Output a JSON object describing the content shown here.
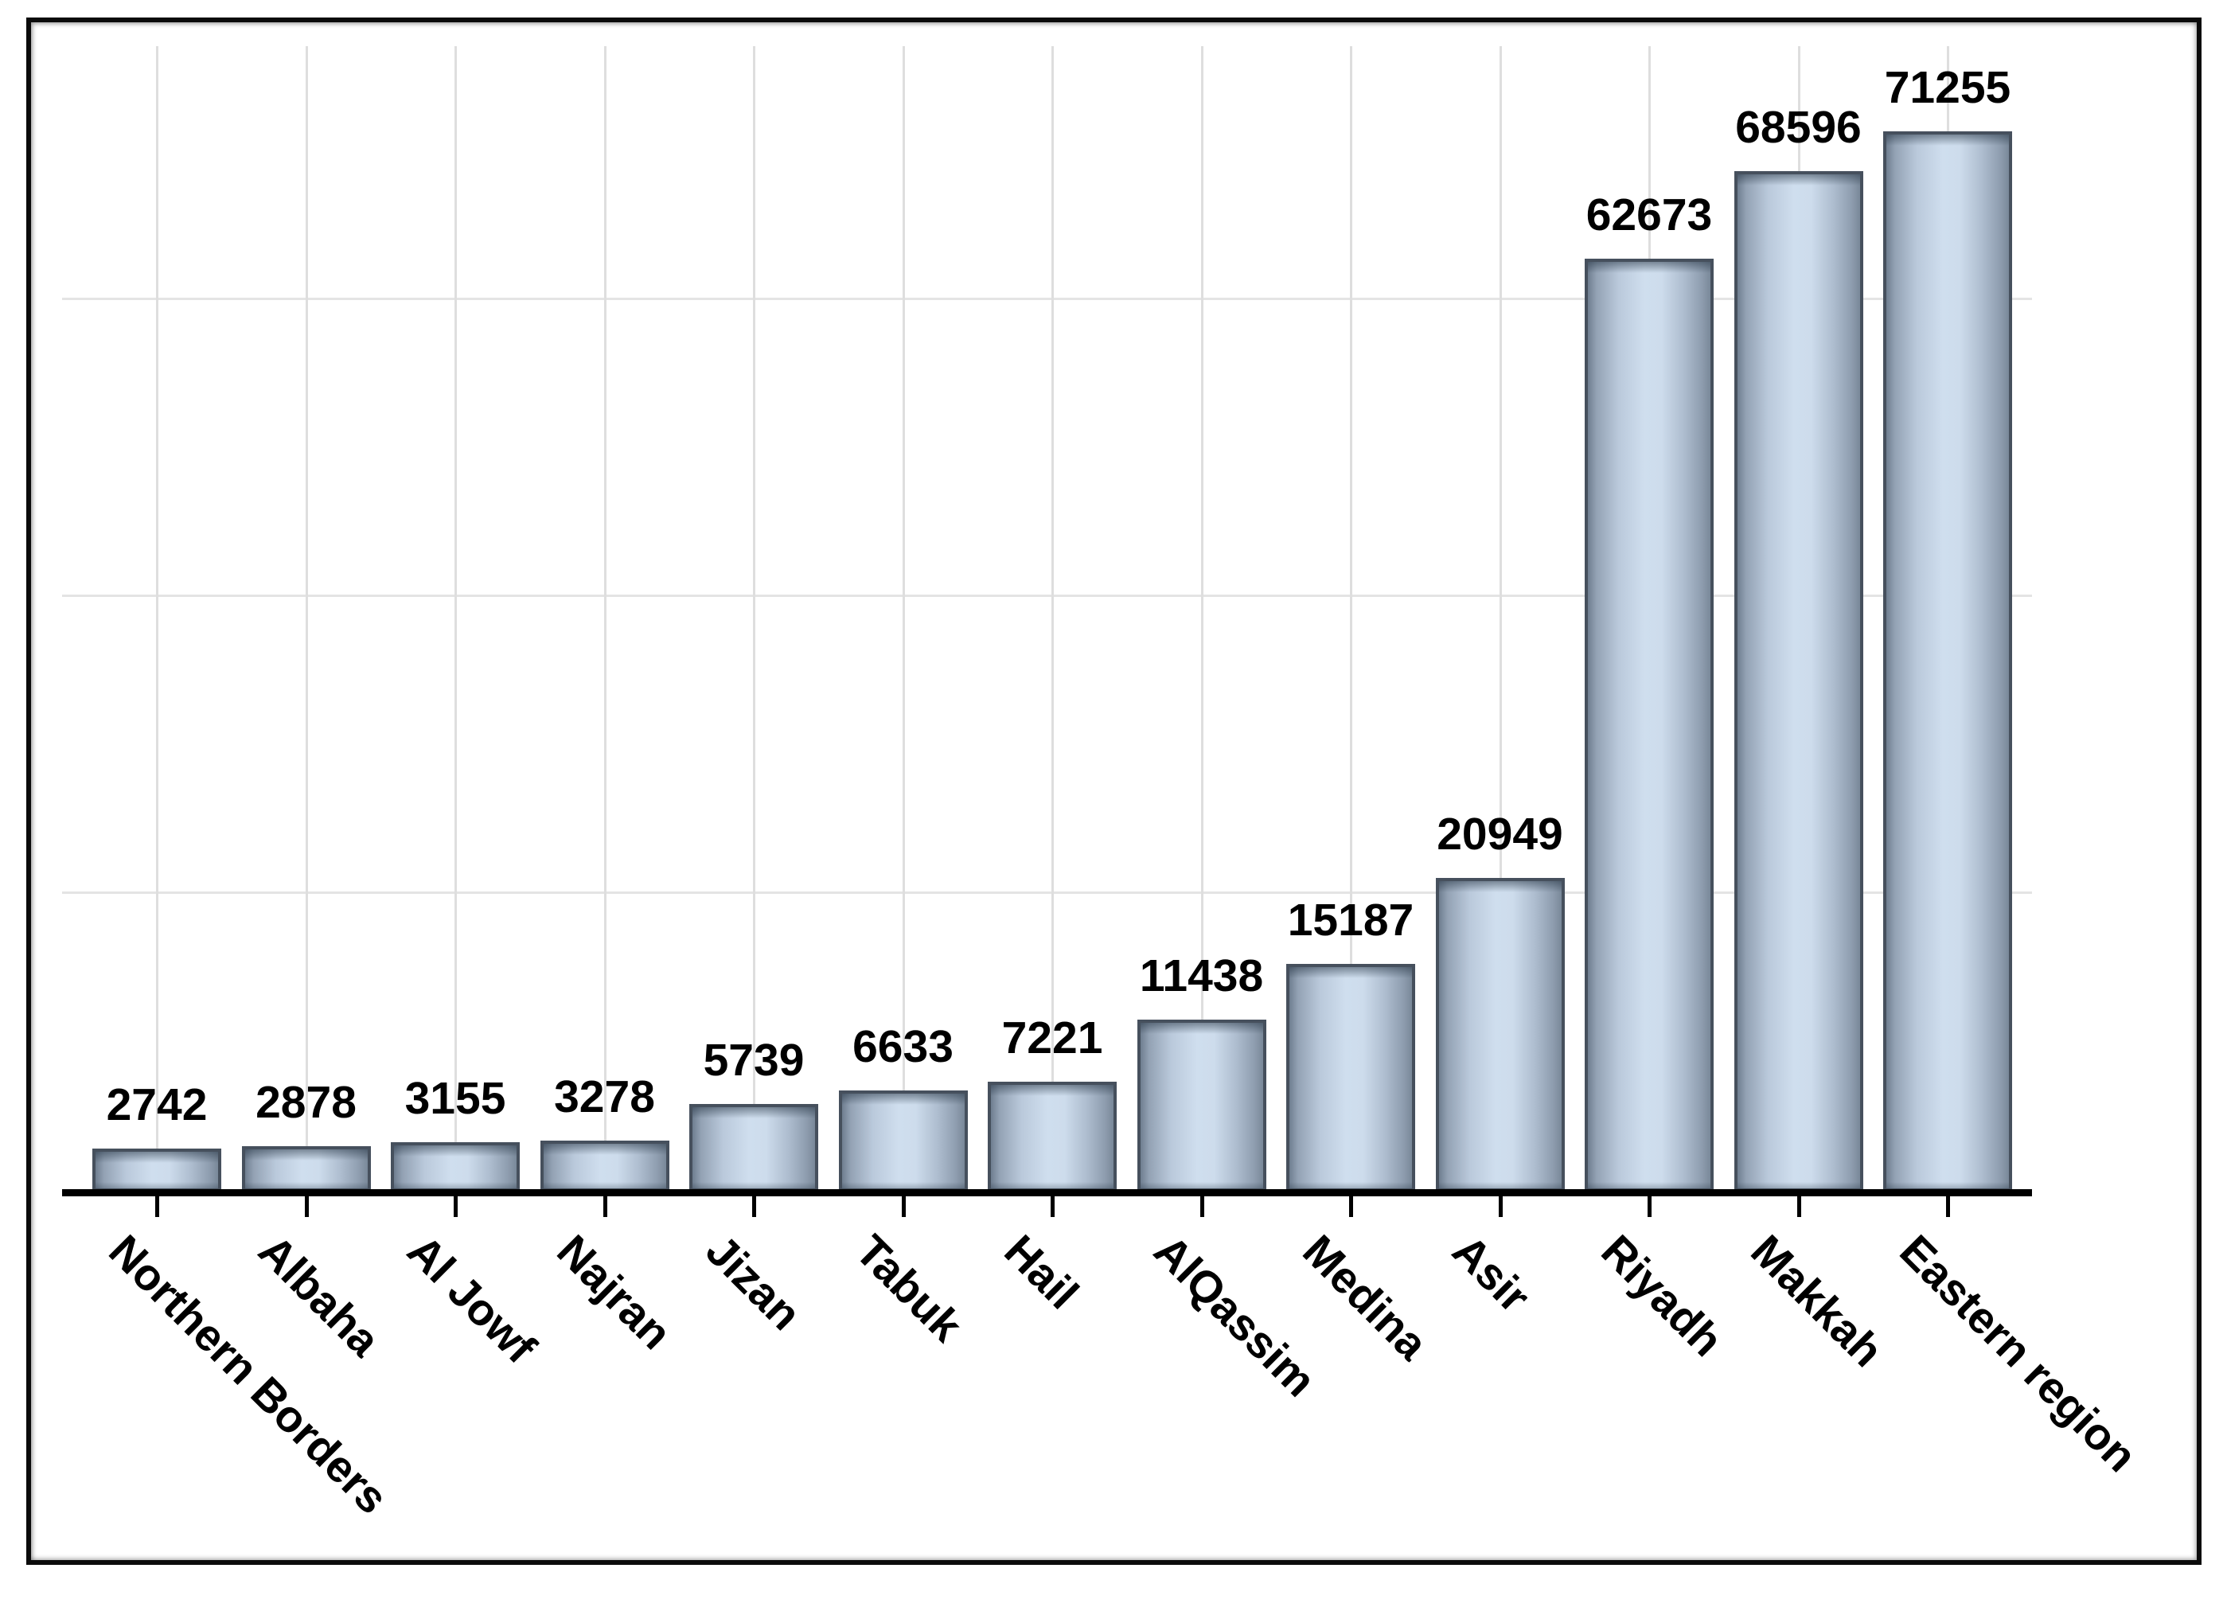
{
  "chart_data": {
    "type": "bar",
    "title": "",
    "xlabel": "",
    "ylabel": "",
    "categories": [
      "Northern Borders",
      "Albaha",
      "Al Jowf",
      "Najran",
      "Jizan",
      "Tabuk",
      "Hail",
      "AlQassim",
      "Medina",
      "Asir",
      "Riyadh",
      "Makkah",
      "Eastern region"
    ],
    "values": [
      2742,
      2878,
      3155,
      3278,
      5739,
      6633,
      7221,
      11438,
      15187,
      20949,
      62673,
      68596,
      71255
    ],
    "bar_value_labels": [
      "2742",
      "2878",
      "3155",
      "3278",
      "5739",
      "6633",
      "7221",
      "11438",
      "15187",
      "20949",
      "62673",
      "68596",
      "71255"
    ],
    "ylim": [
      0,
      75000
    ],
    "y_gridline_values": [
      20000,
      40000,
      60000
    ],
    "grid": "both",
    "legend": "none",
    "x_tick_rotation_deg": -45,
    "bar_labels_shown": true,
    "colors": {
      "bar_fill_center": "#cfdeee",
      "bar_fill_edge": "#6f7e90",
      "bar_border": "#46505d",
      "axis": "#000000",
      "vertical_gridline": "#dedede",
      "horizontal_gridline": "#e4e4e4",
      "label_text": "#000000",
      "figure_border": "#0b0b0b",
      "background": "#ffffff"
    }
  }
}
